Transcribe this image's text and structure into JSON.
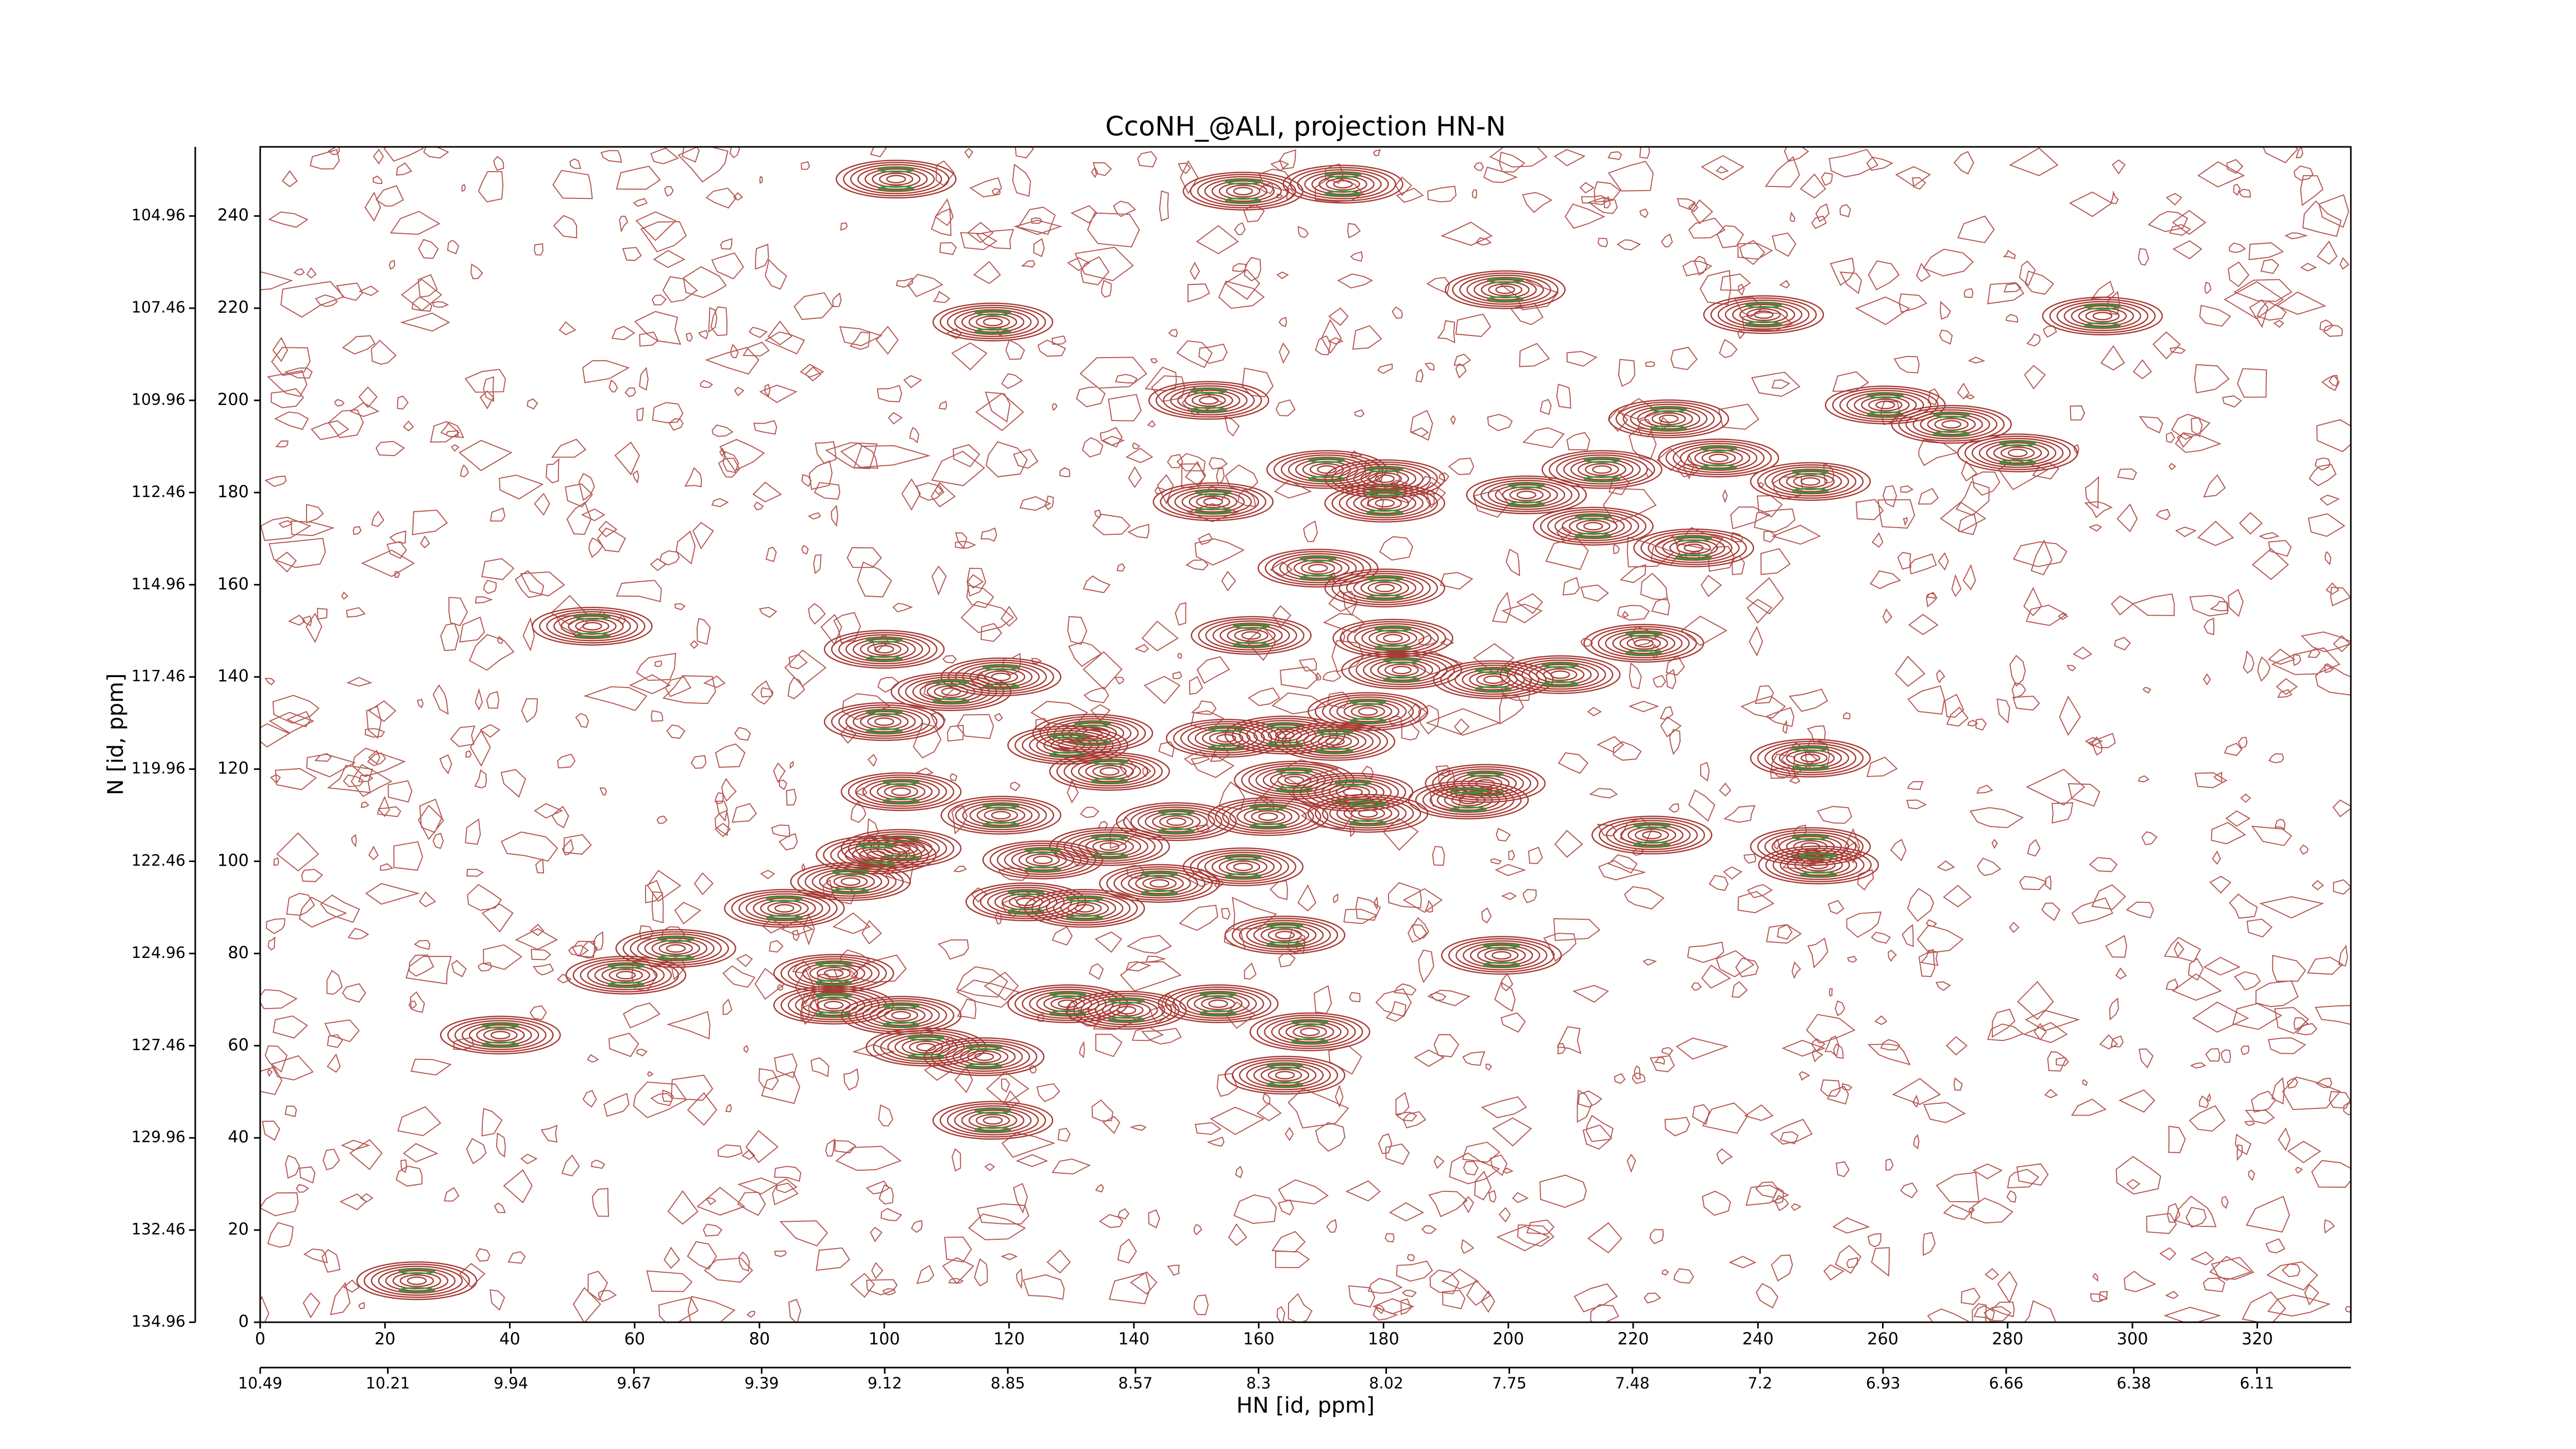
{
  "chart_data": {
    "type": "contour",
    "title": "CcoNH_@ALI, projection HN-N",
    "xlabel": "HN [id, ppm]",
    "ylabel": "N [id, ppm]",
    "x": [
      101.9,
      157.5,
      173.5,
      199.5,
      117.4,
      240.9,
      152,
      152.7,
      170.9,
      180.2,
      180.2,
      248.4,
      213.6,
      229.7,
      169.5,
      180.2,
      53.2,
      100,
      158.8,
      181.5,
      182.9,
      221.7,
      118.7,
      110.7,
      197.6,
      208.3,
      100,
      133.4,
      129.4,
      177.5,
      154.8,
      164.2,
      172.2,
      136.1,
      165.7,
      175.1,
      248.4,
      102.7,
      196.3,
      193.6,
      177.5,
      161.5,
      118.7,
      146.8,
      102.7,
      98.7,
      223,
      248.4,
      249.7,
      136.1,
      125.4,
      144.1,
      157.5,
      94.6,
      122.7,
      132.1,
      84,
      164.2,
      66.6,
      58.6,
      198.9,
      91.9,
      91.9,
      102.7,
      129.4,
      138.8,
      153.5,
      106.7,
      116,
      38.5,
      168.2,
      164.2,
      117.4,
      25.1,
      225.7,
      233.7,
      260.4,
      271,
      281.6,
      295.2,
      202.9,
      215
    ],
    "y": [
      248,
      245.4,
      246.9,
      224,
      217,
      218.6,
      200,
      178,
      185,
      183,
      177.7,
      182.4,
      172.7,
      168,
      163.6,
      159.3,
      151,
      146,
      149,
      148.4,
      141.5,
      147.3,
      140,
      136.8,
      139.4,
      140.5,
      130.3,
      127.8,
      125.2,
      132.5,
      126.7,
      127.4,
      126,
      119.5,
      117.6,
      115,
      122.4,
      115.1,
      116.9,
      113.3,
      110.4,
      109.7,
      110,
      108.6,
      102.8,
      101.4,
      105.7,
      103.2,
      99.2,
      103.2,
      100.3,
      95.2,
      98.8,
      95.6,
      91.2,
      89.8,
      89.8,
      84,
      81.1,
      75.3,
      79.6,
      75.7,
      68.8,
      66.6,
      69.1,
      67.7,
      69.1,
      59.7,
      57.6,
      62.3,
      63,
      53.6,
      43.8,
      9,
      196,
      187.5,
      199,
      194.8,
      188.6,
      218.3,
      179.5,
      185
    ],
    "xlim": [
      0,
      335
    ],
    "ylim": [
      0,
      255
    ],
    "xticks": [
      0,
      20,
      40,
      60,
      80,
      100,
      120,
      140,
      160,
      180,
      200,
      220,
      240,
      260,
      280,
      300,
      320
    ],
    "yticks": [
      0,
      20,
      40,
      60,
      80,
      100,
      120,
      140,
      160,
      180,
      200,
      220,
      240
    ],
    "x2lim": [
      10.49,
      5.904
    ],
    "x2ticks": [
      10.49,
      10.21,
      9.94,
      9.67,
      9.39,
      9.12,
      8.85,
      8.57,
      8.3,
      8.02,
      7.75,
      7.48,
      7.2,
      6.93,
      6.66,
      6.38,
      6.11
    ],
    "y2lim": [
      134.96,
      103.085
    ],
    "y2ticks": [
      104.96,
      107.46,
      109.96,
      112.46,
      114.96,
      117.46,
      119.96,
      122.46,
      124.96,
      127.46,
      129.96,
      132.46,
      134.96
    ],
    "color": "#a83a34",
    "center_color": "#2f9a3a"
  }
}
